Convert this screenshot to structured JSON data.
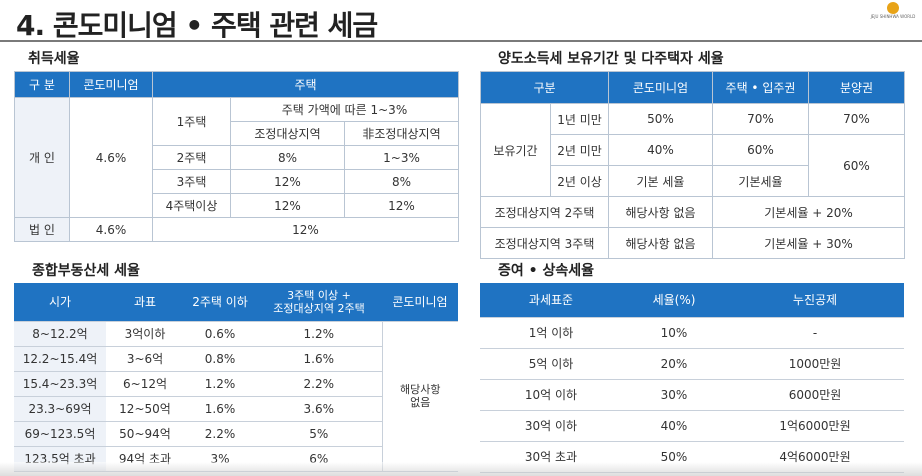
{
  "title": "4. 콘도미니엄 • 주택 관련 세금",
  "logo_text": "JEJU SHINHWA WORLD",
  "acq": {
    "heading": "취득세율",
    "h_gubun": "구 분",
    "h_condo": "콘도미니엄",
    "h_house": "주택",
    "personal": "개 인",
    "personal_condo": "4.6%",
    "one_label": "1주택",
    "one_value": "주택 가액에 따른 1~3%",
    "adj": "조정대상지역",
    "nonadj": "非조정대상지역",
    "rows": [
      {
        "label": "2주택",
        "a": "8%",
        "b": "1~3%"
      },
      {
        "label": "3주택",
        "a": "12%",
        "b": "8%"
      },
      {
        "label": "4주택이상",
        "a": "12%",
        "b": "12%"
      }
    ],
    "corp": "법 인",
    "corp_condo": "4.6%",
    "corp_house": "12%"
  },
  "trans": {
    "heading": "양도소득세 보유기간 및 다주택자 세율",
    "h_gubun": "구분",
    "h_condo": "콘도미니엄",
    "h_house": "주택 • 입주권",
    "h_presale": "분양권",
    "period": "보유기간",
    "p1": "1년 미만",
    "p1_condo": "50%",
    "p1_house": "70%",
    "p1_presale": "70%",
    "p2": "2년 미만",
    "p2_condo": "40%",
    "p2_house": "60%",
    "p3": "2년 이상",
    "p3_condo": "기본 세율",
    "p3_house": "기본세율",
    "presale_23": "60%",
    "adj2": "조정대상지역 2주택",
    "adj2_condo": "해당사항 없음",
    "adj2_val": "기본세율 + 20%",
    "adj3": "조정대상지역 3주택",
    "adj3_condo": "해당사항 없음",
    "adj3_val": "기본세율 + 30%"
  },
  "comp": {
    "heading": "종합부동산세 세율",
    "h_price": "시가",
    "h_base": "과표",
    "h_two": "2주택 이하",
    "h_three_1": "3주택 이상 +",
    "h_three_2": "조정대상지역 2주택",
    "h_condo": "콘도미니엄",
    "condo_value_1": "해당사항",
    "condo_value_2": "없음",
    "rows": [
      {
        "price": "8~12.2억",
        "base": "3억이하",
        "two": "0.6%",
        "three": "1.2%"
      },
      {
        "price": "12.2~15.4억",
        "base": "3~6억",
        "two": "0.8%",
        "three": "1.6%"
      },
      {
        "price": "15.4~23.3억",
        "base": "6~12억",
        "two": "1.2%",
        "three": "2.2%"
      },
      {
        "price": "23.3~69억",
        "base": "12~50억",
        "two": "1.6%",
        "three": "3.6%"
      },
      {
        "price": "69~123.5억",
        "base": "50~94억",
        "two": "2.2%",
        "three": "5%"
      },
      {
        "price": "123.5억 초과",
        "base": "94억 초과",
        "two": "3%",
        "three": "6%"
      }
    ]
  },
  "gift": {
    "heading": "증여 • 상속세율",
    "h_base": "과세표준",
    "h_rate": "세율(%)",
    "h_deduct": "누진공제",
    "rows": [
      {
        "base": "1억 이하",
        "rate": "10%",
        "deduct": "-"
      },
      {
        "base": "5억 이하",
        "rate": "20%",
        "deduct": "1000만원"
      },
      {
        "base": "10억 이하",
        "rate": "30%",
        "deduct": "6000만원"
      },
      {
        "base": "30억 이하",
        "rate": "40%",
        "deduct": "1억6000만원"
      },
      {
        "base": "30억 초과",
        "rate": "50%",
        "deduct": "4억6000만원"
      }
    ]
  }
}
